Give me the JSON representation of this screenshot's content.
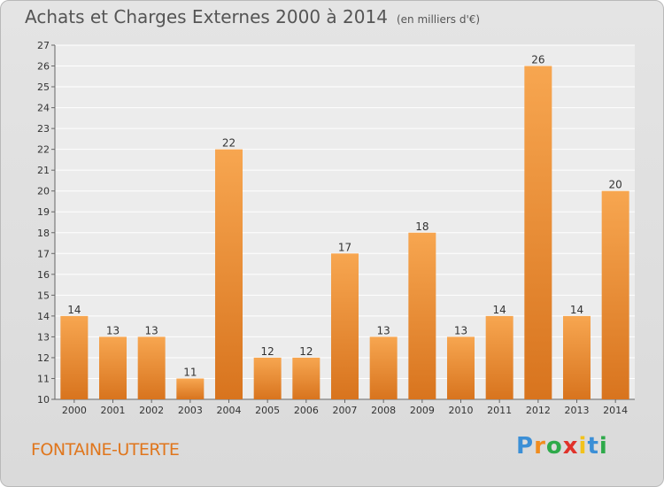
{
  "title": "Achats et Charges Externes 2000 à 2014",
  "unit": "(en milliers d'€)",
  "city": "FONTAINE-UTERTE",
  "logo": {
    "letters": [
      "P",
      "r",
      "o",
      "x",
      "i",
      "t",
      "i"
    ],
    "colors": [
      "#3b8fd6",
      "#f08c1e",
      "#2eaa4a",
      "#e0322a",
      "#f2c21b",
      "#3b8fd6",
      "#2eaa4a"
    ]
  },
  "colors": {
    "bar_light": "#f7a650",
    "bar_dark": "#d8741e",
    "city": "#e0761c"
  },
  "chart_data": {
    "type": "bar",
    "title": "Achats et Charges Externes 2000 à 2014",
    "subtitle": "(en milliers d'€)",
    "categories": [
      "2000",
      "2001",
      "2002",
      "2003",
      "2004",
      "2005",
      "2006",
      "2007",
      "2008",
      "2009",
      "2010",
      "2011",
      "2012",
      "2013",
      "2014"
    ],
    "values": [
      14,
      13,
      13,
      11,
      22,
      12,
      12,
      17,
      13,
      18,
      13,
      14,
      26,
      14,
      20
    ],
    "ylim": [
      10,
      27
    ],
    "yticks": [
      10,
      11,
      12,
      13,
      14,
      15,
      16,
      17,
      18,
      19,
      20,
      21,
      22,
      23,
      24,
      25,
      26,
      27
    ],
    "grid": true,
    "legend": "none"
  }
}
